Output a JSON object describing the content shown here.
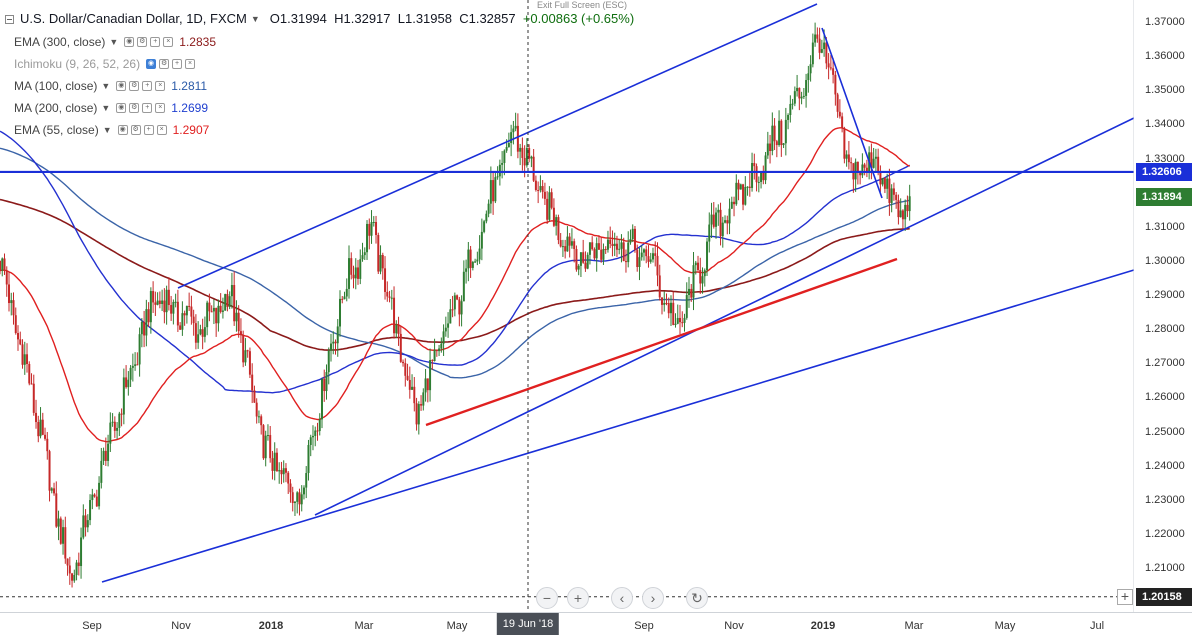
{
  "header": {
    "symbol": "U.S. Dollar/Canadian Dollar, 1D, FXCM",
    "ohlc": {
      "open": "O1.31994",
      "high": "H1.32917",
      "low": "L1.31958",
      "close": "C1.32857",
      "change": "+0.00863 (+0.65%)"
    },
    "exit_full_screen": "Exit Full Screen (ESC)"
  },
  "indicators": [
    {
      "name": "EMA (300, close)",
      "value": "1.2835",
      "color": "#8b1a1a"
    },
    {
      "name": "Ichimoku (9, 26, 52, 26)",
      "value": "",
      "color": ""
    },
    {
      "name": "MA (100, close)",
      "value": "1.2811",
      "color": "#2a5aa8"
    },
    {
      "name": "MA (200, close)",
      "value": "1.2699",
      "color": "#1f3fcf"
    },
    {
      "name": "EMA (55, close)",
      "value": "1.2907",
      "color": "#e02020"
    }
  ],
  "price_axis": {
    "ticks": [
      "1.37000",
      "1.36000",
      "1.35000",
      "1.34000",
      "1.33000",
      "1.32000",
      "1.31000",
      "1.30000",
      "1.29000",
      "1.28000",
      "1.27000",
      "1.26000",
      "1.25000",
      "1.24000",
      "1.23000",
      "1.22000",
      "1.21000"
    ],
    "labels": [
      {
        "text": "1.32606",
        "color": "#1a2fd8"
      },
      {
        "text": "1.31894",
        "color": "#2e7d32"
      },
      {
        "text": "1.20158",
        "color": "#222222"
      }
    ]
  },
  "time_axis": {
    "ticks": [
      "Sep",
      "Nov",
      "2018",
      "Mar",
      "May",
      "Sep",
      "Nov",
      "2019",
      "Mar",
      "May",
      "Jul"
    ],
    "crosshair_label": "19 Jun '18"
  },
  "nav_buttons": [
    "−",
    "+",
    "‹",
    "›",
    "↻"
  ],
  "colors": {
    "trendline_blue": "#1a2fd8",
    "trendline_red": "#e02020",
    "up_candle": "#2e7d32",
    "down_candle": "#c62828"
  },
  "chart_data": {
    "type": "candlestick",
    "ylim": [
      1.195,
      1.376
    ],
    "x_start": "2017-07-25",
    "x_end": "2019-07-25",
    "annotated_levels": [
      1.32606,
      1.20158
    ],
    "last_close": 1.31894,
    "approx_close_path": [
      {
        "date": "2017-07-25",
        "close": 1.3
      },
      {
        "date": "2017-08-15",
        "close": 1.26
      },
      {
        "date": "2017-09-08",
        "close": 1.2065
      },
      {
        "date": "2017-10-05",
        "close": 1.25
      },
      {
        "date": "2017-11-01",
        "close": 1.29
      },
      {
        "date": "2017-12-01",
        "close": 1.28
      },
      {
        "date": "2017-12-20",
        "close": 1.29
      },
      {
        "date": "2018-01-10",
        "close": 1.245
      },
      {
        "date": "2018-02-01",
        "close": 1.23
      },
      {
        "date": "2018-03-01",
        "close": 1.29
      },
      {
        "date": "2018-03-20",
        "close": 1.31
      },
      {
        "date": "2018-04-17",
        "close": 1.255
      },
      {
        "date": "2018-05-15",
        "close": 1.29
      },
      {
        "date": "2018-06-19",
        "close": 1.3385
      },
      {
        "date": "2018-07-10",
        "close": 1.315
      },
      {
        "date": "2018-08-01",
        "close": 1.3
      },
      {
        "date": "2018-08-20",
        "close": 1.3065
      },
      {
        "date": "2018-09-15",
        "close": 1.3
      },
      {
        "date": "2018-10-01",
        "close": 1.279
      },
      {
        "date": "2018-10-25",
        "close": 1.31
      },
      {
        "date": "2018-11-20",
        "close": 1.325
      },
      {
        "date": "2018-12-15",
        "close": 1.345
      },
      {
        "date": "2019-01-01",
        "close": 1.3665
      },
      {
        "date": "2019-01-20",
        "close": 1.325
      },
      {
        "date": "2019-02-05",
        "close": 1.33
      },
      {
        "date": "2019-02-20",
        "close": 1.3125
      },
      {
        "date": "2019-02-27",
        "close": 1.31894
      }
    ]
  }
}
